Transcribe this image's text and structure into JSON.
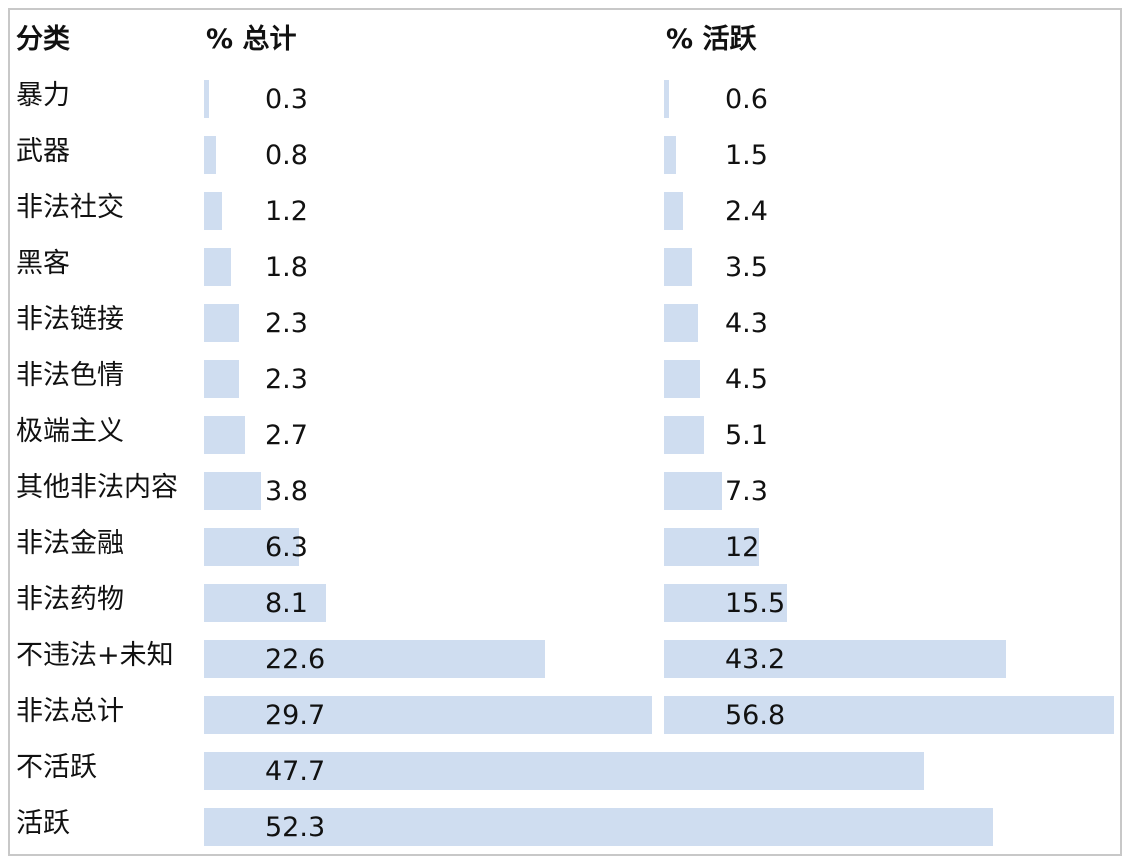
{
  "chart_data": {
    "type": "table",
    "headers": {
      "category": "分类",
      "total": "% 总计",
      "active": "% 活跃"
    },
    "bar_color": "#cfddf0",
    "rows": [
      {
        "category": "暴力",
        "total": "0.3",
        "active": "0.6"
      },
      {
        "category": "武器",
        "total": "0.8",
        "active": "1.5"
      },
      {
        "category": "非法社交",
        "total": "1.2",
        "active": "2.4"
      },
      {
        "category": "黑客",
        "total": "1.8",
        "active": "3.5"
      },
      {
        "category": "非法链接",
        "total": "2.3",
        "active": "4.3"
      },
      {
        "category": "非法色情",
        "total": "2.3",
        "active": "4.5"
      },
      {
        "category": "极端主义",
        "total": "2.7",
        "active": "5.1"
      },
      {
        "category": "其他非法内容",
        "total": "3.8",
        "active": "7.3"
      },
      {
        "category": "非法金融",
        "total": "6.3",
        "active": "12"
      },
      {
        "category": "非法药物",
        "total": "8.1",
        "active": "15.5"
      },
      {
        "category": "不违法+未知",
        "total": "22.6",
        "active": "43.2"
      },
      {
        "category": "非法总计",
        "total": "29.7",
        "active": "56.8"
      },
      {
        "category": "不活跃",
        "total": "47.7"
      },
      {
        "category": "活跃",
        "total": "52.3"
      }
    ]
  }
}
